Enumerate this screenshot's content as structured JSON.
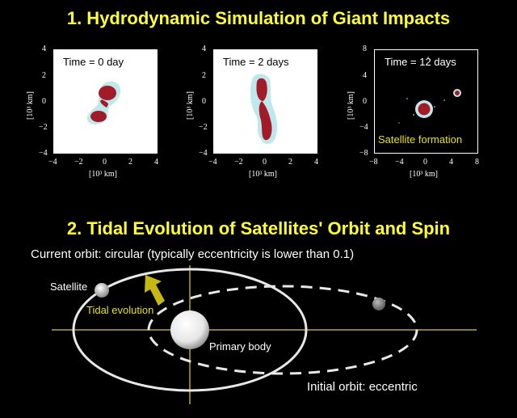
{
  "section1": {
    "title": "1. Hydrodynamic Simulation of Giant Impacts"
  },
  "panels": [
    {
      "time_label": "Time = 0 day",
      "x_ticks": [
        "−4",
        "−2",
        "0",
        "2",
        "4"
      ],
      "y_ticks": [
        "4",
        "2",
        "0",
        "−2",
        "−4"
      ]
    },
    {
      "time_label": "Time = 2 days",
      "x_ticks": [
        "−4",
        "−2",
        "0",
        "2",
        "4"
      ],
      "y_ticks": [
        "4",
        "2",
        "0",
        "−2",
        "−4"
      ]
    },
    {
      "time_label": "Time = 12 days",
      "x_ticks": [
        "−8",
        "−4",
        "0",
        "4",
        "8"
      ],
      "y_ticks": [
        "8",
        "4",
        "0",
        "−4",
        "−8"
      ],
      "annotation": "Satellite formation"
    }
  ],
  "axis_unit": "[10³ km]",
  "section2": {
    "title": "2. Tidal Evolution of Satellites' Orbit and Spin"
  },
  "orbit": {
    "current_orbit": "Current orbit: circular (typically eccentricity is lower than 0.1)",
    "satellite_label": "Satellite",
    "tidal_label": "Tidal evolution",
    "primary_label": "Primary body",
    "initial_orbit": "Initial orbit: eccentric"
  },
  "colors": {
    "title": "#ffff33",
    "dense": "#a01c28",
    "halo": "#bfe8ec",
    "tidal": "#c8b814",
    "axis": "#8a7d2a"
  }
}
